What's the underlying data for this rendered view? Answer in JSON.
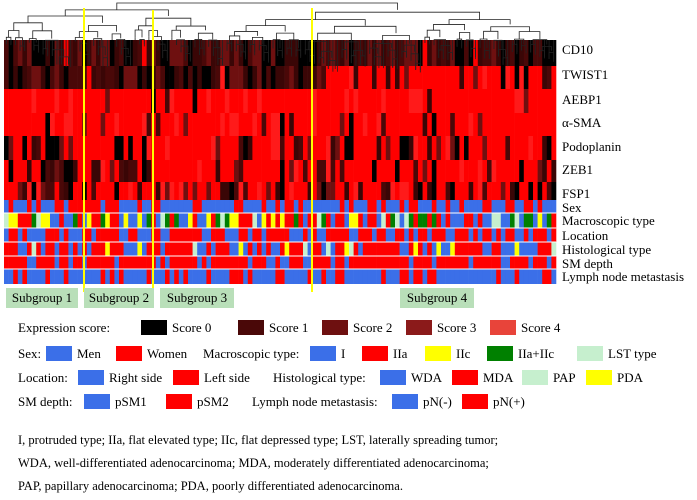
{
  "chart_data": {
    "type": "heatmap",
    "rows": [
      "CD10",
      "TWIST1",
      "AEBP1",
      "α-SMA",
      "Podoplanin",
      "ZEB1",
      "FSP1"
    ],
    "annotation_rows": [
      "Sex",
      "Macroscopic type",
      "Location",
      "Histological type",
      "SM depth",
      "Lymph node metastasis"
    ],
    "subgroups": [
      {
        "label": "Subgroup 1"
      },
      {
        "label": "Subgroup 2"
      },
      {
        "label": "Subgroup 3"
      },
      {
        "label": "Subgroup 4"
      }
    ],
    "expression_legend": {
      "title": "Expression score:",
      "items": [
        {
          "label": "Score 0",
          "color": "#000000"
        },
        {
          "label": "Score 1",
          "color": "#4a0808"
        },
        {
          "label": "Score 2",
          "color": "#6e1010"
        },
        {
          "label": "Score 3",
          "color": "#8b1a1a"
        },
        {
          "label": "Score 4",
          "color": "#e8443a"
        }
      ]
    },
    "colors": {
      "blue": "#3b6fe8",
      "red": "#ff0000",
      "yellow": "#ffff00",
      "green": "#008000",
      "lightgreen": "#c6efce",
      "white": "#ffffff",
      "separator": "#ffff00",
      "subgroup_box": "#b9dfb9"
    }
  },
  "legend": {
    "sex": {
      "title": "Sex:",
      "items": [
        {
          "label": "Men",
          "color": "#3b6fe8"
        },
        {
          "label": "Women",
          "color": "#ff0000"
        }
      ]
    },
    "macroscopic": {
      "title": "Macroscopic type:",
      "items": [
        {
          "label": "I",
          "color": "#3b6fe8"
        },
        {
          "label": "IIa",
          "color": "#ff0000"
        },
        {
          "label": "IIc",
          "color": "#ffff00"
        },
        {
          "label": "IIa+IIc",
          "color": "#008000"
        },
        {
          "label": "LST type",
          "color": "#c6efce"
        }
      ]
    },
    "location": {
      "title": "Location:",
      "items": [
        {
          "label": "Right side",
          "color": "#3b6fe8"
        },
        {
          "label": "Left side",
          "color": "#ff0000"
        }
      ]
    },
    "histological": {
      "title": "Histological type:",
      "items": [
        {
          "label": "WDA",
          "color": "#3b6fe8"
        },
        {
          "label": "MDA",
          "color": "#ff0000"
        },
        {
          "label": "PAP",
          "color": "#c6efce"
        },
        {
          "label": "PDA",
          "color": "#ffff00"
        }
      ]
    },
    "sm_depth": {
      "title": "SM depth:",
      "items": [
        {
          "label": "pSM1",
          "color": "#3b6fe8"
        },
        {
          "label": "pSM2",
          "color": "#ff0000"
        }
      ]
    },
    "lymph": {
      "title": "Lymph node metastasis:",
      "items": [
        {
          "label": "pN(-)",
          "color": "#3b6fe8"
        },
        {
          "label": "pN(+)",
          "color": "#ff0000"
        }
      ]
    }
  },
  "notes": [
    "I, protruded type; IIa, flat elevated type; IIc, flat depressed type; LST, laterally spreading tumor;",
    "WDA, well-differentiated adenocarcinoma; MDA, moderately differentiated adenocarcinoma;",
    "PAP, papillary adenocarcinoma; PDA, poorly differentiated adenocarcinoma."
  ]
}
